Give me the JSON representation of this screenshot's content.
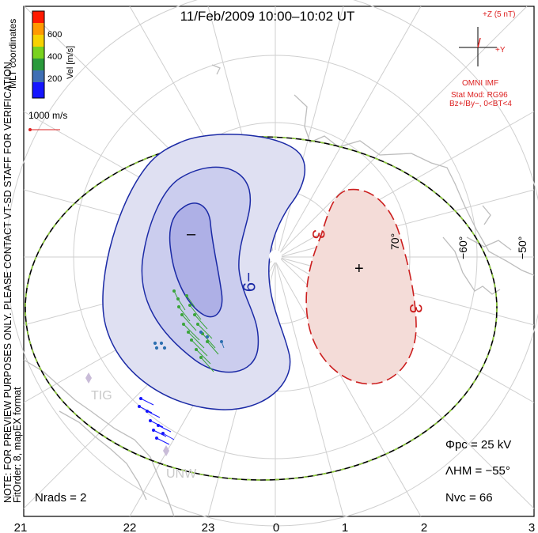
{
  "title": "11/Feb/2009  10:00–10:02  UT",
  "coordinates_label": "MLT coordinates",
  "velocity_scale": {
    "axis_label": "Vel [m/s]",
    "ticks": [
      "600",
      "400",
      "200"
    ],
    "colors": [
      "#ff1a00",
      "#ff9900",
      "#f7d200",
      "#79d21e",
      "#2a9a3c",
      "#3f6fb4",
      "#1515ff"
    ]
  },
  "vector_key_label": "1000 m/s",
  "watermark": "NOTE: FOR PREVIEW PURPOSES ONLY. PLEASE CONTACT VT-SD STAFF FOR VERIFICATION.",
  "fit_info": "FitOrder: 8, mapEX format",
  "imf": {
    "bz_label": "+Z (5 nT)",
    "by_label": "+Y",
    "source": "OMNI IMF",
    "stat_mod": "Stat Mod: RG96",
    "condition": "Bz+/By−, 0<BT<4"
  },
  "contours": {
    "negative_label": "−9",
    "positive_label": "3",
    "min_marker": "–",
    "max_marker": "+"
  },
  "latitude_labels": [
    "70°",
    "−60°",
    "−50°"
  ],
  "mlt_labels": [
    "21",
    "22",
    "23",
    "0",
    "1",
    "2",
    "3"
  ],
  "stations": [
    "TIG",
    "UNW"
  ],
  "stats": {
    "phi_pc": "Φpc  =  25 kV",
    "lambda_hm": "ΛHM  =  −55°",
    "n_vc": "Nvc  =  66",
    "n_rads": "Nrads  =  2"
  },
  "colors": {
    "negative_fill": "#c9cbeb",
    "negative_line": "#1b2aa6",
    "positive_fill": "#f2d7d3",
    "positive_line": "#cc1f1f",
    "boundary_dash": "#8fce3a"
  }
}
